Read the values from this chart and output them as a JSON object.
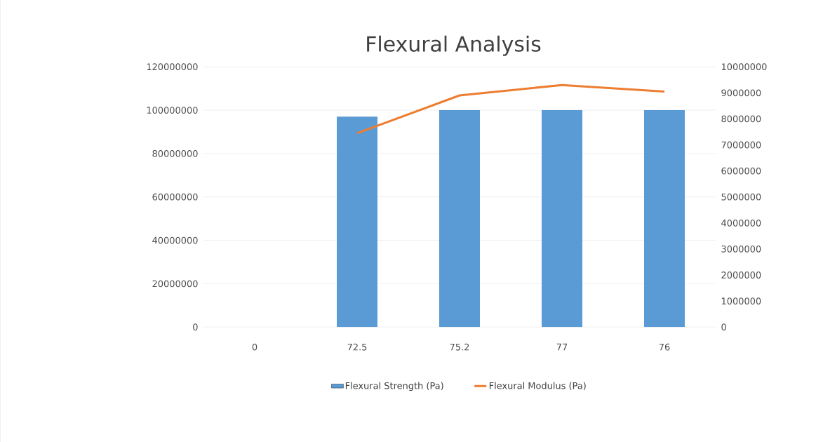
{
  "chart_data": {
    "type": "bar",
    "title": "Flexural Analysis",
    "categories": [
      "0",
      "72.5",
      "75.2",
      "77",
      "76"
    ],
    "series": [
      {
        "name": "Flexural Strength (Pa)",
        "color": "#5b9bd5",
        "values": [
          0,
          97000000,
          100000000,
          100000000,
          100000000
        ]
      },
      {
        "name": "Flexural Modulus (Pa)",
        "type": "line",
        "axis": "y2",
        "color": "#ed7d31",
        "values": [
          null,
          7450000,
          8900000,
          9300000,
          9050000
        ]
      }
    ],
    "ylim": [
      0,
      120000000
    ],
    "yticks": [
      0,
      20000000,
      40000000,
      60000000,
      80000000,
      100000000,
      120000000
    ],
    "y2lim": [
      0,
      10000000
    ],
    "y2ticks": [
      0,
      1000000,
      2000000,
      3000000,
      4000000,
      5000000,
      6000000,
      7000000,
      8000000,
      9000000,
      10000000
    ],
    "grid": "y",
    "legend": "bottom",
    "line_style": "solid",
    "marker": "none"
  }
}
